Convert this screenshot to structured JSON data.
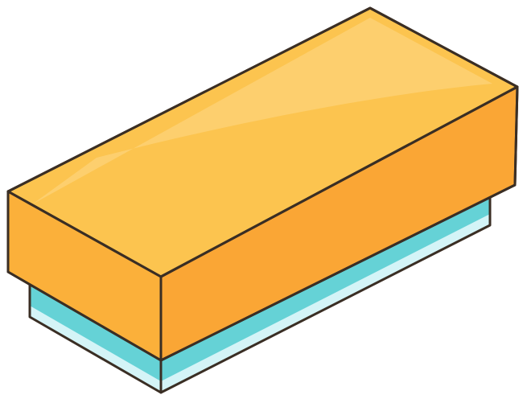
{
  "illustration": {
    "subject": "closed-box",
    "colors": {
      "background": "#ffffff",
      "outline": "#3a2e24",
      "lid_top": "#fcc44f",
      "lid_top_shine": "#fdd378",
      "lid_front": "#fbb03a",
      "lid_side": "#faa635",
      "base_band": "#65d2d6",
      "base_band_light": "#d4f4f7"
    }
  }
}
